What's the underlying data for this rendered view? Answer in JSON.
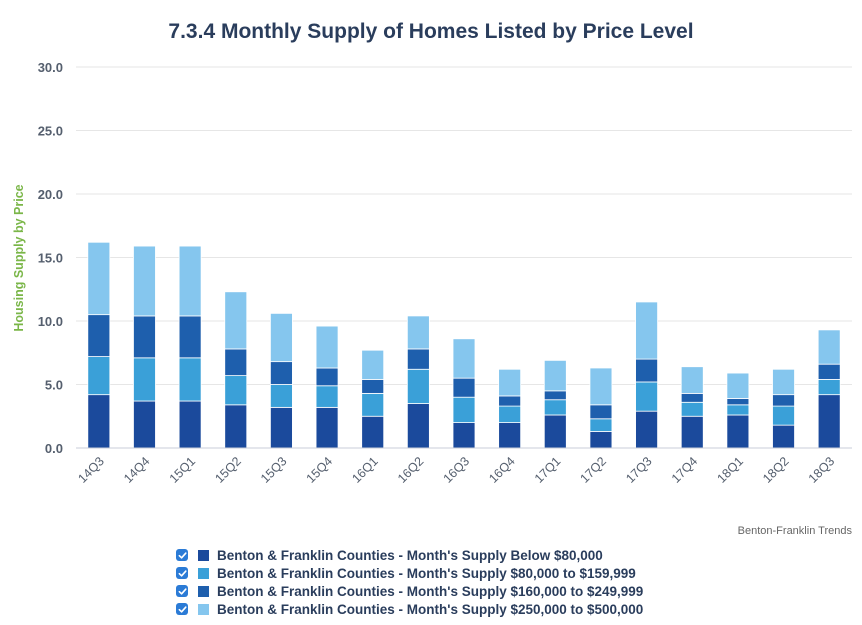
{
  "chart_data": {
    "type": "bar",
    "stacked": true,
    "title": "7.3.4 Monthly Supply of Homes Listed by Price Level",
    "ylabel": "Housing Supply by Price",
    "xlabel": "",
    "ylim": [
      0,
      30
    ],
    "yticks": [
      "0.0",
      "5.0",
      "10.0",
      "15.0",
      "20.0",
      "25.0",
      "30.0"
    ],
    "grid": true,
    "legend_position": "bottom",
    "categories": [
      "14Q3",
      "14Q4",
      "15Q1",
      "15Q2",
      "15Q3",
      "15Q4",
      "16Q1",
      "16Q2",
      "16Q3",
      "16Q4",
      "17Q1",
      "17Q2",
      "17Q3",
      "17Q4",
      "18Q1",
      "18Q2",
      "18Q3"
    ],
    "series": [
      {
        "name": "Benton & Franklin Counties - Month's Supply Below $80,000",
        "color": "#1b4a9c",
        "values": [
          4.2,
          3.7,
          3.7,
          3.4,
          3.2,
          3.2,
          2.5,
          3.5,
          2.0,
          2.0,
          2.6,
          1.3,
          2.9,
          2.5,
          2.6,
          1.8,
          4.2
        ]
      },
      {
        "name": "Benton & Franklin Counties - Month's Supply $80,000 to $159,999",
        "color": "#3aa0d8",
        "values": [
          3.0,
          3.4,
          3.4,
          2.3,
          1.8,
          1.7,
          1.8,
          2.7,
          2.0,
          1.3,
          1.2,
          1.0,
          2.3,
          1.1,
          0.8,
          1.5,
          1.2
        ]
      },
      {
        "name": "Benton & Franklin Counties - Month's Supply $160,000 to $249,999",
        "color": "#1e5fad",
        "values": [
          3.3,
          3.3,
          3.3,
          2.1,
          1.8,
          1.4,
          1.1,
          1.6,
          1.5,
          0.8,
          0.7,
          1.1,
          1.8,
          0.7,
          0.5,
          0.9,
          1.2
        ]
      },
      {
        "name": "Benton & Franklin Counties - Month's Supply $250,000 to $500,000",
        "color": "#85c6ee",
        "values": [
          5.7,
          5.5,
          5.5,
          4.5,
          3.8,
          3.3,
          2.3,
          2.6,
          3.1,
          2.1,
          2.4,
          2.9,
          4.5,
          2.1,
          2.0,
          2.0,
          2.7
        ]
      }
    ]
  },
  "credit": "Benton-Franklin Trends"
}
